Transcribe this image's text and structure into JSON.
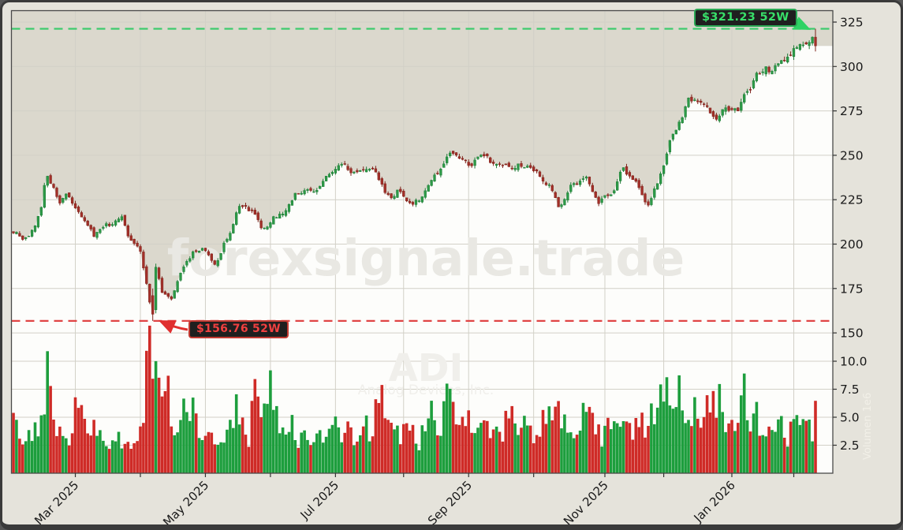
{
  "watermarks": {
    "site": "forexsignale.trade",
    "symbol": "ADI",
    "company": "Analog Devices, Inc.",
    "side_label": "Volumen",
    "side_scale": "1e6"
  },
  "annotations": {
    "high_badge_label": "$321.23 52W",
    "low_badge_label": "$156.76 52W",
    "high_value": 321.23,
    "low_value": 156.76
  },
  "colors": {
    "plot_beige": "#dbd8cd",
    "plot_white": "#fdfdfb",
    "margin": "#e5e3db",
    "grid": "#d2d0c7",
    "border": "#4a4a4a",
    "candle_up": "#2c9a47",
    "candle_up_edge": "#1e7a35",
    "candle_down": "#a32f28",
    "candle_down_edge": "#7e221b",
    "volume_up": "#1d9e3d",
    "volume_down": "#cf2b27",
    "dash_high": "#3ecb6e",
    "dash_low": "#e04444",
    "arrow_high": "#2fd264",
    "arrow_low": "#e02f2f",
    "axis_text": "#1a1a1a",
    "watermark": "#e9e8e3",
    "watermark_faint": "#f0efeb"
  },
  "chart_data": {
    "type": "candlestick+volume",
    "title": "",
    "candle_count": 260,
    "legend_position": "none",
    "grid": true,
    "price_axis": {
      "side": "right",
      "ticks": [
        150,
        175,
        200,
        225,
        250,
        275,
        300,
        325
      ],
      "range_displayed": [
        150,
        325
      ]
    },
    "volume_axis": {
      "side": "right",
      "tick_labels": [
        "2.5",
        "5.0",
        "7.5",
        "10.0"
      ],
      "tick_values": [
        2.5,
        5.0,
        7.5,
        10.0
      ],
      "unit_scale": "1e6"
    },
    "x_axis": {
      "ticks": [
        {
          "i": 20,
          "label": "Mar 2025"
        },
        {
          "i": 41,
          "label": ""
        },
        {
          "i": 62,
          "label": "May 2025"
        },
        {
          "i": 83,
          "label": ""
        },
        {
          "i": 104,
          "label": "Jul 2025"
        },
        {
          "i": 126,
          "label": ""
        },
        {
          "i": 147,
          "label": "Sep 2025"
        },
        {
          "i": 168,
          "label": ""
        },
        {
          "i": 191,
          "label": "Nov 2025"
        },
        {
          "i": 210,
          "label": ""
        },
        {
          "i": 232,
          "label": "Jan 2026"
        },
        {
          "i": 252,
          "label": ""
        }
      ]
    },
    "key_levels": {
      "high_52w": 321.23,
      "low_52w": 156.76
    },
    "low_day": {
      "i": 45,
      "open": 171,
      "high": 175,
      "low": 156.76,
      "close": 160.5
    },
    "rebound_day": {
      "i": 46,
      "open": 163,
      "high": 189,
      "low": 161,
      "close": 187
    },
    "last_day": {
      "i": 259,
      "open": 316.5,
      "high": 321.23,
      "low": 308.5,
      "close": 311.6
    },
    "price_anchors": [
      [
        0,
        206
      ],
      [
        3,
        203
      ],
      [
        7,
        210
      ],
      [
        9,
        222
      ],
      [
        10,
        234
      ],
      [
        11,
        238
      ],
      [
        13,
        230
      ],
      [
        15,
        223
      ],
      [
        17,
        227
      ],
      [
        21,
        220
      ],
      [
        26,
        205
      ],
      [
        30,
        210
      ],
      [
        35,
        214
      ],
      [
        38,
        203
      ],
      [
        41,
        195
      ],
      [
        43,
        178
      ],
      [
        44,
        167
      ],
      [
        45,
        160.5
      ],
      [
        46,
        187
      ],
      [
        48,
        174
      ],
      [
        51,
        169
      ],
      [
        54,
        185
      ],
      [
        58,
        194
      ],
      [
        61,
        198
      ],
      [
        65,
        189
      ],
      [
        69,
        203
      ],
      [
        72,
        218
      ],
      [
        73,
        221
      ],
      [
        77,
        219
      ],
      [
        80,
        208
      ],
      [
        83,
        214
      ],
      [
        87,
        217
      ],
      [
        91,
        226
      ],
      [
        94,
        231
      ],
      [
        97,
        229
      ],
      [
        101,
        238
      ],
      [
        105,
        244
      ],
      [
        108,
        241
      ],
      [
        112,
        242
      ],
      [
        116,
        244
      ],
      [
        119,
        232
      ],
      [
        122,
        225
      ],
      [
        125,
        230
      ],
      [
        129,
        222
      ],
      [
        133,
        230
      ],
      [
        136,
        238
      ],
      [
        140,
        248
      ],
      [
        143,
        253
      ],
      [
        147,
        245
      ],
      [
        149,
        247
      ],
      [
        153,
        249
      ],
      [
        156,
        244
      ],
      [
        159,
        246
      ],
      [
        162,
        243
      ],
      [
        166,
        244
      ],
      [
        170,
        237
      ],
      [
        173,
        233
      ],
      [
        176,
        222
      ],
      [
        178,
        225
      ],
      [
        180,
        233
      ],
      [
        185,
        237
      ],
      [
        189,
        224
      ],
      [
        193,
        229
      ],
      [
        197,
        241
      ],
      [
        200,
        236
      ],
      [
        203,
        228
      ],
      [
        205,
        223
      ],
      [
        207,
        230
      ],
      [
        209,
        240
      ],
      [
        211,
        252
      ],
      [
        214,
        264
      ],
      [
        216,
        272
      ],
      [
        218,
        280
      ],
      [
        221,
        283
      ],
      [
        224,
        276
      ],
      [
        227,
        271
      ],
      [
        229,
        274
      ],
      [
        232,
        277
      ],
      [
        234,
        275
      ],
      [
        237,
        288
      ],
      [
        240,
        294
      ],
      [
        243,
        299
      ],
      [
        245,
        295
      ],
      [
        248,
        303
      ],
      [
        252,
        309
      ],
      [
        255,
        315
      ],
      [
        257,
        311
      ],
      [
        258,
        315
      ],
      [
        259,
        311.6
      ]
    ],
    "volume_anchors": [
      [
        0,
        4.6
      ],
      [
        2,
        3.4
      ],
      [
        4,
        2.6
      ],
      [
        6,
        4.0
      ],
      [
        8,
        3.0
      ],
      [
        10,
        5.2
      ],
      [
        11,
        9.7
      ],
      [
        12,
        6.0
      ],
      [
        14,
        4.2
      ],
      [
        16,
        3.6
      ],
      [
        18,
        2.8
      ],
      [
        20,
        5.5
      ],
      [
        22,
        4.8
      ],
      [
        24,
        3.4
      ],
      [
        26,
        4.6
      ],
      [
        28,
        3.1
      ],
      [
        31,
        2.6
      ],
      [
        34,
        3.5
      ],
      [
        36,
        2.5
      ],
      [
        38,
        3.0
      ],
      [
        40,
        3.6
      ],
      [
        42,
        5.5
      ],
      [
        43,
        8.8
      ],
      [
        44,
        10.2
      ],
      [
        45,
        9.2
      ],
      [
        46,
        11.3
      ],
      [
        47,
        8.9
      ],
      [
        48,
        7.0
      ],
      [
        49,
        8.4
      ],
      [
        51,
        5.2
      ],
      [
        53,
        4.0
      ],
      [
        55,
        5.6
      ],
      [
        57,
        4.4
      ],
      [
        58,
        6.9
      ],
      [
        60,
        3.4
      ],
      [
        62,
        2.7
      ],
      [
        64,
        3.9
      ],
      [
        66,
        2.9
      ],
      [
        68,
        3.3
      ],
      [
        70,
        4.1
      ],
      [
        72,
        6.2
      ],
      [
        74,
        4.3
      ],
      [
        76,
        3.1
      ],
      [
        78,
        8.7
      ],
      [
        80,
        5.4
      ],
      [
        82,
        6.3
      ],
      [
        83,
        10.9
      ],
      [
        84,
        6.2
      ],
      [
        86,
        3.8
      ],
      [
        88,
        3.2
      ],
      [
        90,
        4.4
      ],
      [
        92,
        3.1
      ],
      [
        94,
        3.7
      ],
      [
        96,
        2.6
      ],
      [
        98,
        3.4
      ],
      [
        100,
        2.9
      ],
      [
        102,
        3.3
      ],
      [
        104,
        4.0
      ],
      [
        106,
        3.0
      ],
      [
        108,
        3.8
      ],
      [
        110,
        2.7
      ],
      [
        112,
        3.2
      ],
      [
        114,
        4.6
      ],
      [
        116,
        3.4
      ],
      [
        118,
        8.6
      ],
      [
        119,
        6.5
      ],
      [
        121,
        5.0
      ],
      [
        123,
        3.6
      ],
      [
        125,
        3.1
      ],
      [
        127,
        4.5
      ],
      [
        129,
        3.8
      ],
      [
        131,
        2.9
      ],
      [
        133,
        4.2
      ],
      [
        135,
        5.6
      ],
      [
        137,
        3.3
      ],
      [
        139,
        6.2
      ],
      [
        140,
        7.5
      ],
      [
        142,
        5.8
      ],
      [
        144,
        4.1
      ],
      [
        146,
        5.4
      ],
      [
        148,
        3.7
      ],
      [
        150,
        3.2
      ],
      [
        152,
        4.4
      ],
      [
        154,
        3.5
      ],
      [
        156,
        5.0
      ],
      [
        158,
        3.0
      ],
      [
        160,
        5.8
      ],
      [
        162,
        4.3
      ],
      [
        164,
        3.2
      ],
      [
        166,
        4.8
      ],
      [
        168,
        3.5
      ],
      [
        170,
        4.1
      ],
      [
        172,
        5.3
      ],
      [
        174,
        4.6
      ],
      [
        176,
        5.9
      ],
      [
        178,
        4.4
      ],
      [
        180,
        3.7
      ],
      [
        182,
        3.1
      ],
      [
        184,
        4.9
      ],
      [
        186,
        5.5
      ],
      [
        188,
        4.0
      ],
      [
        190,
        3.3
      ],
      [
        192,
        4.5
      ],
      [
        194,
        3.8
      ],
      [
        196,
        5.1
      ],
      [
        198,
        4.2
      ],
      [
        200,
        3.5
      ],
      [
        202,
        5.0
      ],
      [
        204,
        4.1
      ],
      [
        206,
        6.5
      ],
      [
        208,
        5.2
      ],
      [
        209,
        8.4
      ],
      [
        211,
        7.6
      ],
      [
        213,
        6.0
      ],
      [
        215,
        7.5
      ],
      [
        217,
        5.4
      ],
      [
        219,
        4.7
      ],
      [
        221,
        5.8
      ],
      [
        223,
        4.4
      ],
      [
        225,
        6.8
      ],
      [
        227,
        5.0
      ],
      [
        228,
        9.4
      ],
      [
        230,
        4.3
      ],
      [
        232,
        3.7
      ],
      [
        234,
        4.8
      ],
      [
        236,
        6.9
      ],
      [
        238,
        4.2
      ],
      [
        240,
        5.5
      ],
      [
        242,
        4.0
      ],
      [
        244,
        4.6
      ],
      [
        246,
        3.4
      ],
      [
        248,
        4.3
      ],
      [
        250,
        3.1
      ],
      [
        252,
        4.4
      ],
      [
        254,
        3.6
      ],
      [
        256,
        4.2
      ],
      [
        258,
        3.4
      ],
      [
        259,
        5.3
      ]
    ]
  }
}
